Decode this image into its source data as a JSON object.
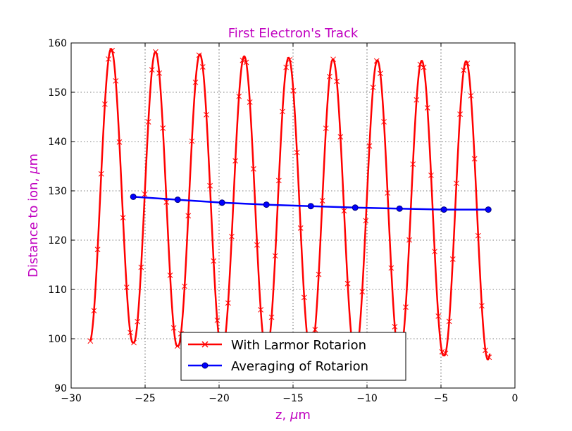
{
  "chart_data": {
    "type": "line",
    "title": "First Electron's Track",
    "xlabel_parts": [
      "z, ",
      "μ",
      "m"
    ],
    "ylabel_parts": [
      "Distance to ion, ",
      "μ",
      "m"
    ],
    "xlim": [
      -30,
      0
    ],
    "ylim": [
      90,
      160
    ],
    "x_ticks": [
      -30,
      -25,
      -20,
      -15,
      -10,
      -5,
      0
    ],
    "x_tick_labels": [
      "−30",
      "−25",
      "−20",
      "−15",
      "−10",
      "−5",
      "0"
    ],
    "y_ticks": [
      90,
      100,
      110,
      120,
      130,
      140,
      150,
      160
    ],
    "y_tick_labels": [
      "90",
      "100",
      "110",
      "120",
      "130",
      "140",
      "150",
      "160"
    ],
    "grid": true,
    "legend_position": "lower center",
    "series": [
      {
        "name": "With Larmor Rotarion",
        "color": "#ff0000",
        "marker": "x",
        "oscillation": {
          "z_start": -28.7,
          "z_end": -1.7,
          "period": 2.94,
          "peak_z": [
            -27.3,
            -24.3,
            -21.3,
            -18.3,
            -15.3,
            -12.3,
            -9.3,
            -6.3,
            -3.3
          ],
          "peak_values": [
            158.8,
            158.2,
            157.7,
            157.3,
            157.0,
            156.7,
            156.5,
            156.4,
            156.3
          ],
          "trough_values": [
            99.2,
            98.5,
            98.0,
            97.7,
            97.4,
            97.1,
            96.9,
            96.6,
            95.8
          ],
          "start_value": 101.0
        }
      },
      {
        "name": "Averaging of Rotarion",
        "color": "#0000ff",
        "marker": "o",
        "x": [
          -25.8,
          -22.8,
          -19.8,
          -16.8,
          -13.8,
          -10.8,
          -7.8,
          -4.8,
          -1.8
        ],
        "y": [
          128.8,
          128.2,
          127.6,
          127.2,
          126.9,
          126.6,
          126.4,
          126.2,
          126.2
        ]
      }
    ]
  }
}
